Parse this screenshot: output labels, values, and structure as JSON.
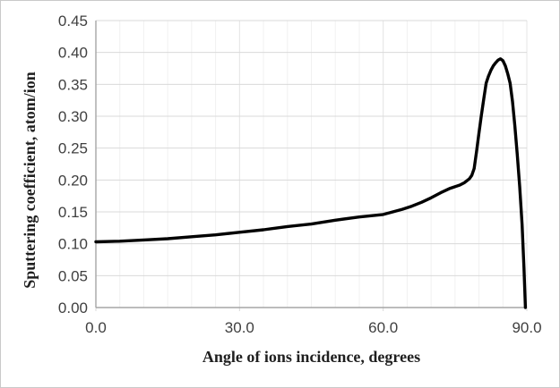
{
  "chart_data": {
    "type": "line",
    "title": "",
    "xlabel": "Angle of ions incidence, degrees",
    "ylabel": "Sputtering coefficient, atom/ion",
    "xlim": [
      0,
      90
    ],
    "ylim": [
      0,
      0.45
    ],
    "x_ticks": [
      0,
      30,
      60,
      90
    ],
    "x_tick_labels": [
      "0.0",
      "30.0",
      "60.0",
      "90.0"
    ],
    "x_tick_step": 30,
    "y_ticks": [
      0,
      0.05,
      0.1,
      0.15,
      0.2,
      0.25,
      0.3,
      0.35,
      0.4,
      0.45
    ],
    "y_tick_labels": [
      "0.00",
      "0.05",
      "0.10",
      "0.15",
      "0.20",
      "0.25",
      "0.30",
      "0.35",
      "0.40",
      "0.45"
    ],
    "grid": "horizontal major gridlines every 0.05; faint vertical gridlines every 5 degrees",
    "v_grid_step": 5,
    "legend": "none",
    "series": [
      {
        "name": "sputtering-coefficient",
        "color": "#000000",
        "width": 3.4,
        "points": [
          [
            0,
            0.103
          ],
          [
            5,
            0.104
          ],
          [
            10,
            0.106
          ],
          [
            15,
            0.108
          ],
          [
            20,
            0.111
          ],
          [
            25,
            0.114
          ],
          [
            30,
            0.118
          ],
          [
            35,
            0.122
          ],
          [
            40,
            0.127
          ],
          [
            45,
            0.131
          ],
          [
            50,
            0.137
          ],
          [
            55,
            0.142
          ],
          [
            60,
            0.146
          ],
          [
            62,
            0.15
          ],
          [
            64,
            0.154
          ],
          [
            66,
            0.159
          ],
          [
            68,
            0.165
          ],
          [
            70,
            0.172
          ],
          [
            72,
            0.18
          ],
          [
            74,
            0.187
          ],
          [
            76,
            0.192
          ],
          [
            77,
            0.196
          ],
          [
            78,
            0.202
          ],
          [
            78.5,
            0.207
          ],
          [
            79,
            0.218
          ],
          [
            79.5,
            0.245
          ],
          [
            80,
            0.274
          ],
          [
            80.5,
            0.301
          ],
          [
            81,
            0.327
          ],
          [
            81.5,
            0.352
          ],
          [
            82,
            0.363
          ],
          [
            82.5,
            0.372
          ],
          [
            83,
            0.379
          ],
          [
            83.5,
            0.384
          ],
          [
            84,
            0.388
          ],
          [
            84.5,
            0.39
          ],
          [
            85,
            0.387
          ],
          [
            85.5,
            0.379
          ],
          [
            86,
            0.367
          ],
          [
            86.5,
            0.352
          ],
          [
            87,
            0.323
          ],
          [
            87.5,
            0.285
          ],
          [
            88,
            0.24
          ],
          [
            88.5,
            0.19
          ],
          [
            89,
            0.13
          ],
          [
            89.4,
            0.062
          ],
          [
            89.7,
            0.0
          ]
        ]
      }
    ],
    "style": {
      "grid_color_h": "#d9d9d9",
      "grid_color_v_minor": "#f1f1f1",
      "grid_color_v_major": "#e4e4e4",
      "axis_color": "#a6a6a6",
      "tick_label_color": "#404040",
      "title_color": "#1f1f1f",
      "plot_background": "#ffffff"
    }
  }
}
